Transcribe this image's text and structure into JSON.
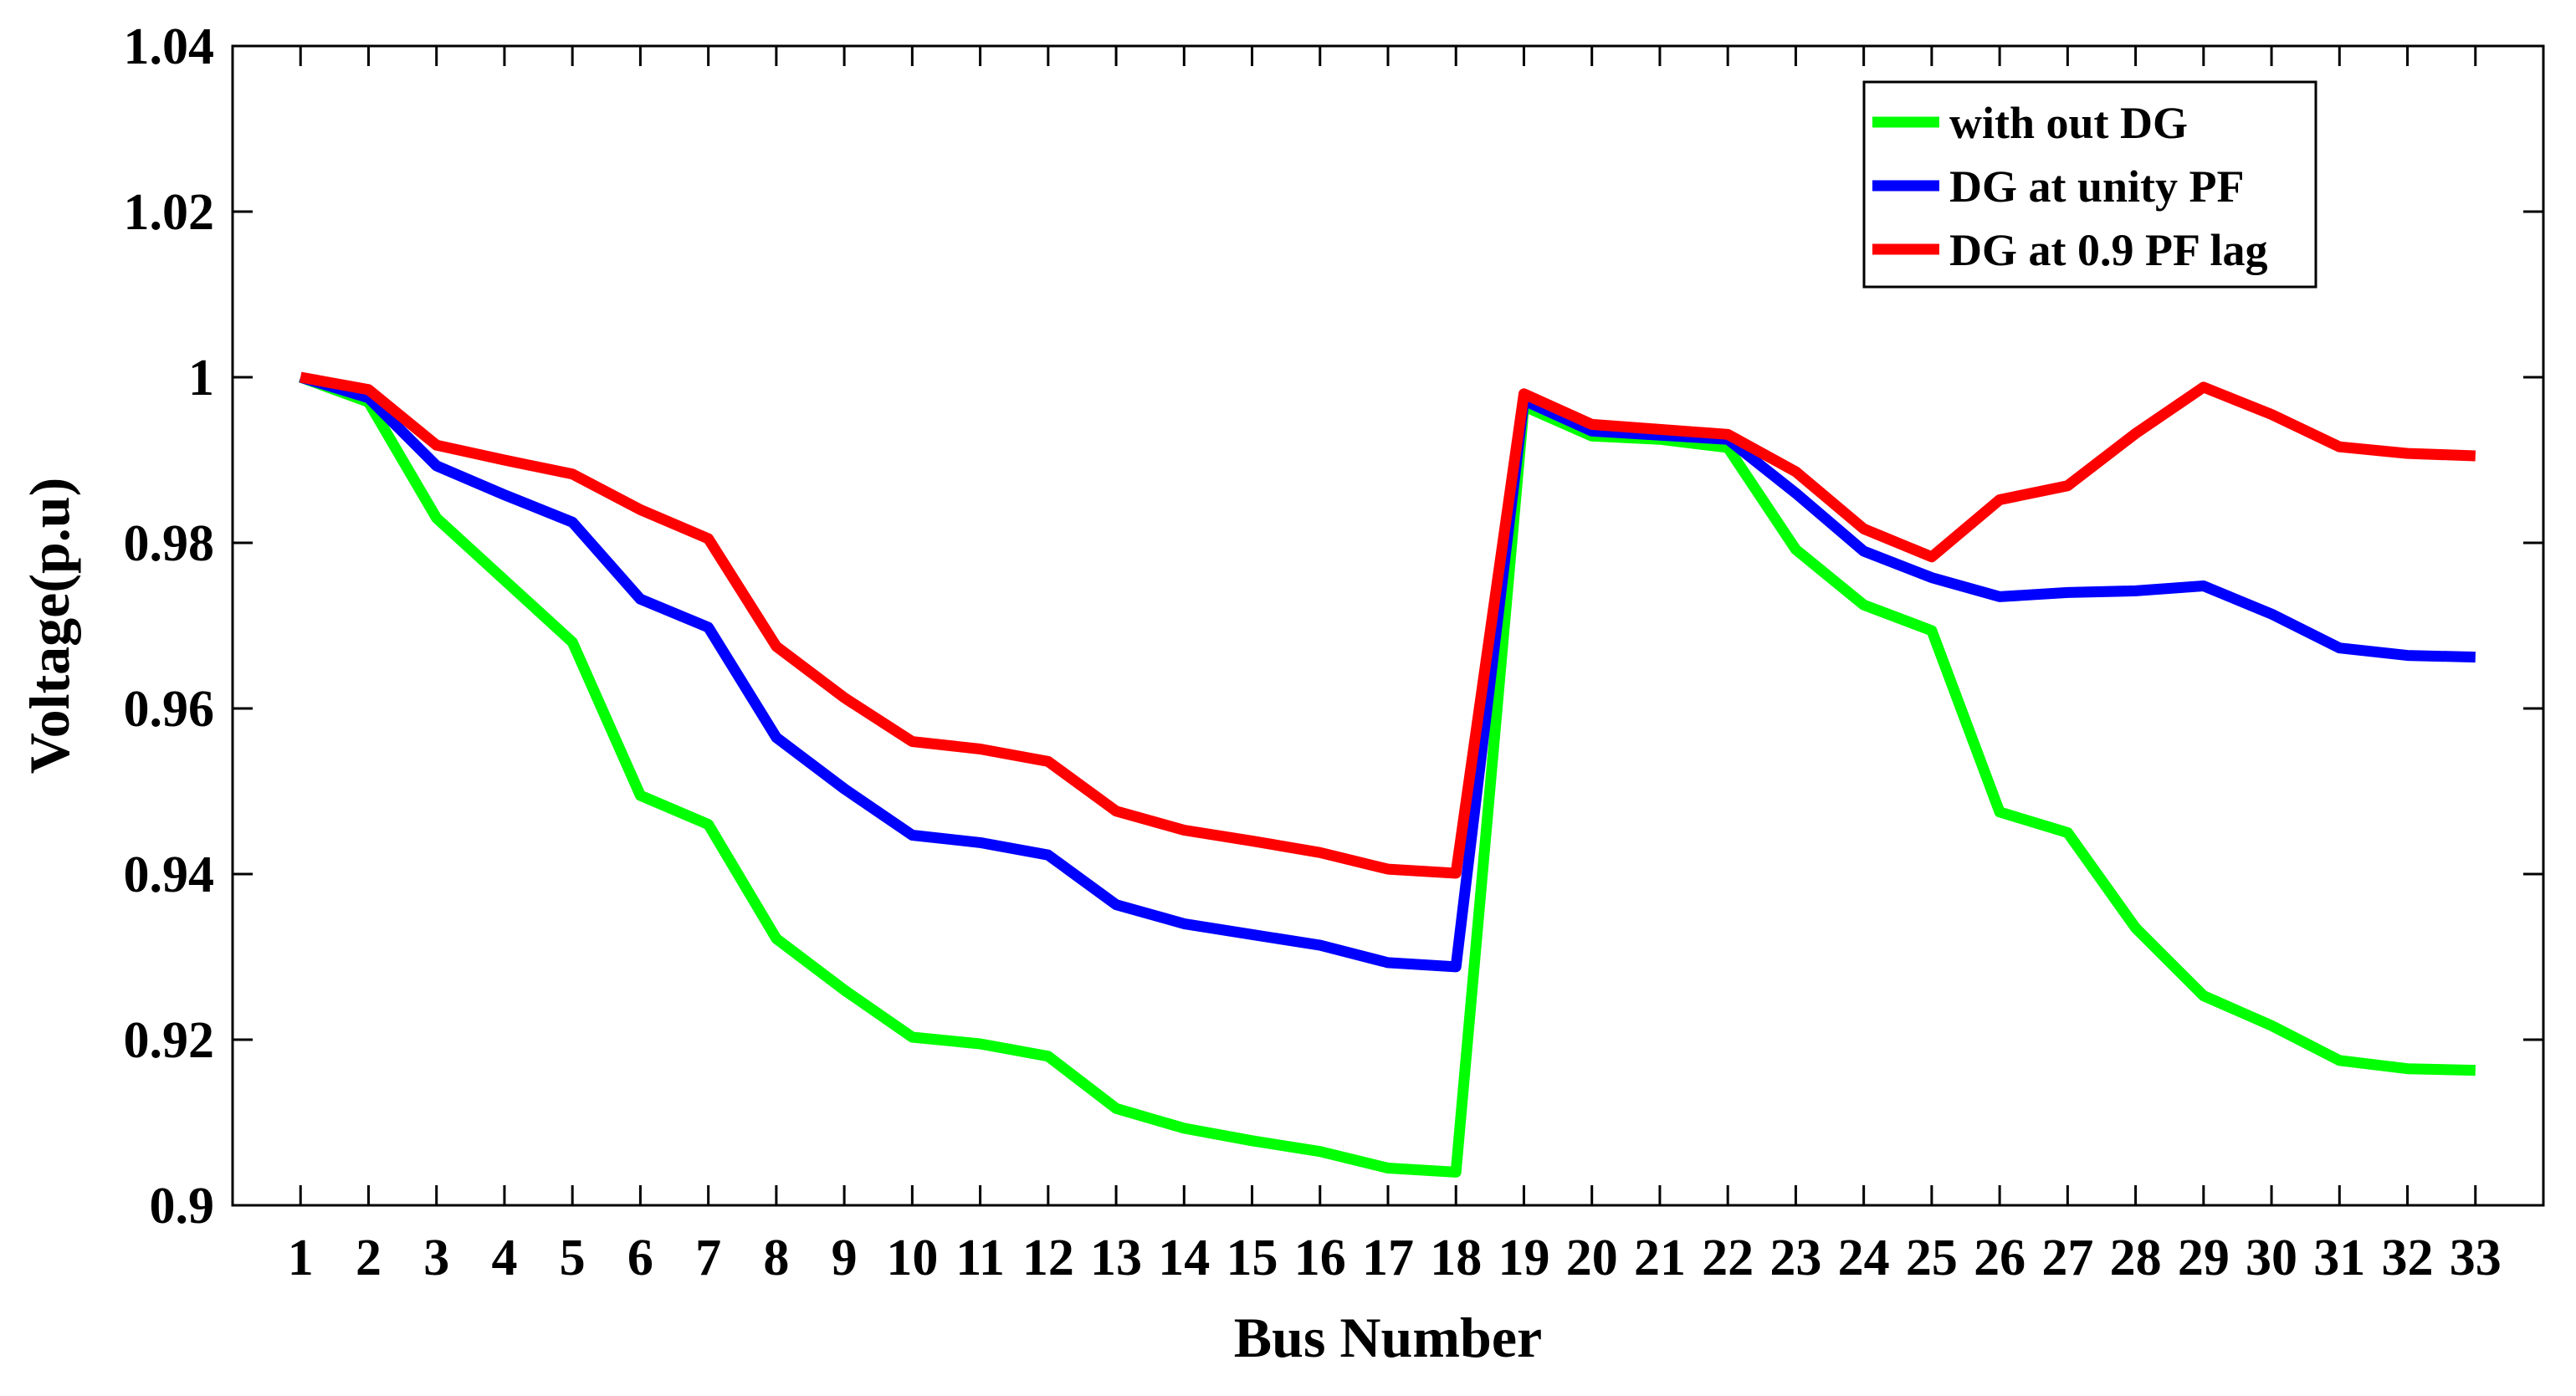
{
  "chart_data": {
    "type": "line",
    "xlabel": "Bus Number",
    "ylabel": "Voltage(p.u)",
    "x": [
      1,
      2,
      3,
      4,
      5,
      6,
      7,
      8,
      9,
      10,
      11,
      12,
      13,
      14,
      15,
      16,
      17,
      18,
      19,
      20,
      21,
      22,
      23,
      24,
      25,
      26,
      27,
      28,
      29,
      30,
      31,
      32,
      33
    ],
    "xlim": [
      0,
      34
    ],
    "ylim": [
      0.9,
      1.04
    ],
    "yticks": [
      0.9,
      0.92,
      0.94,
      0.96,
      0.98,
      1,
      1.02,
      1.04
    ],
    "ytick_labels": [
      "0.9",
      "0.92",
      "0.94",
      "0.96",
      "0.98",
      "1",
      "1.02",
      "1.04"
    ],
    "xtick_labels": [
      "1",
      "2",
      "3",
      "4",
      "5",
      "6",
      "7",
      "8",
      "9",
      "10",
      "11",
      "12",
      "13",
      "14",
      "15",
      "16",
      "17",
      "18",
      "19",
      "20",
      "21",
      "22",
      "23",
      "24",
      "25",
      "26",
      "27",
      "28",
      "29",
      "30",
      "31",
      "32",
      "33"
    ],
    "grid": false,
    "legend_position": "top-right",
    "series": [
      {
        "name": "with out DG",
        "color": "#00ff00",
        "values": [
          1.0,
          0.997,
          0.983,
          0.9755,
          0.968,
          0.9495,
          0.946,
          0.9322,
          0.926,
          0.9203,
          0.9195,
          0.918,
          0.9117,
          0.9093,
          0.9078,
          0.9065,
          0.9045,
          0.904,
          0.9965,
          0.9929,
          0.9925,
          0.9915,
          0.9792,
          0.9725,
          0.9694,
          0.9475,
          0.945,
          0.9335,
          0.9253,
          0.9217,
          0.9175,
          0.9165,
          0.9163
        ]
      },
      {
        "name": "DG at unity PF",
        "color": "#0000ff",
        "values": [
          1.0,
          0.9975,
          0.9893,
          0.9858,
          0.9825,
          0.9732,
          0.9698,
          0.9565,
          0.9503,
          0.9447,
          0.9438,
          0.9423,
          0.9363,
          0.934,
          0.9327,
          0.9314,
          0.9293,
          0.9288,
          0.9972,
          0.9935,
          0.993,
          0.9925,
          0.986,
          0.979,
          0.9758,
          0.9735,
          0.974,
          0.9742,
          0.9748,
          0.9714,
          0.9673,
          0.9664,
          0.9662
        ]
      },
      {
        "name": "DG at 0.9 PF lag",
        "color": "#ff0000",
        "values": [
          1.0,
          0.9985,
          0.9918,
          0.99,
          0.9883,
          0.984,
          0.9805,
          0.9675,
          0.9613,
          0.956,
          0.9551,
          0.9536,
          0.9476,
          0.9453,
          0.944,
          0.9426,
          0.9406,
          0.9401,
          0.998,
          0.9943,
          0.9937,
          0.9931,
          0.9886,
          0.9817,
          0.9783,
          0.9852,
          0.9869,
          0.9932,
          0.9988,
          0.9955,
          0.9916,
          0.9908,
          0.9905
        ]
      }
    ]
  }
}
